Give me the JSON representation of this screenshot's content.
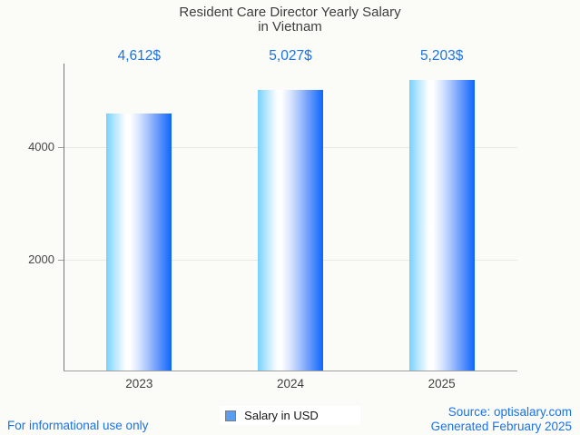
{
  "title": {
    "line1": "Resident Care Director Yearly Salary",
    "line2": "in Vietnam"
  },
  "chart_data": {
    "type": "bar",
    "categories": [
      "2023",
      "2024",
      "2025"
    ],
    "values": [
      4612,
      5027,
      5203
    ],
    "value_labels": [
      "4,612$",
      "5,027$",
      "5,203$"
    ],
    "series_name": "Salary in USD",
    "title": "Resident Care Director Yearly Salary in Vietnam",
    "xlabel": "",
    "ylabel": "",
    "yticks": [
      2000,
      4000
    ],
    "ytick_labels": [
      "2000",
      "4000"
    ],
    "ylim": [
      0,
      5500
    ],
    "grid": true,
    "legend_position": "bottom"
  },
  "legend": {
    "label": "Salary in USD",
    "marker_color": "#5b9df0"
  },
  "footer": {
    "disclaimer": "For informational use only",
    "source": "Source: optisalary.com",
    "generated": "Generated February 2025"
  },
  "colors": {
    "background": "#fbfbf7",
    "accent_blue": "#1a73e8",
    "title_text": "#3e3e3e",
    "axis_line": "#757575",
    "grid_line": "#e9e9e4",
    "bar_gradient_left": "#76d1fb",
    "bar_gradient_mid": "#ffffff",
    "bar_gradient_right": "#0d66fb"
  }
}
